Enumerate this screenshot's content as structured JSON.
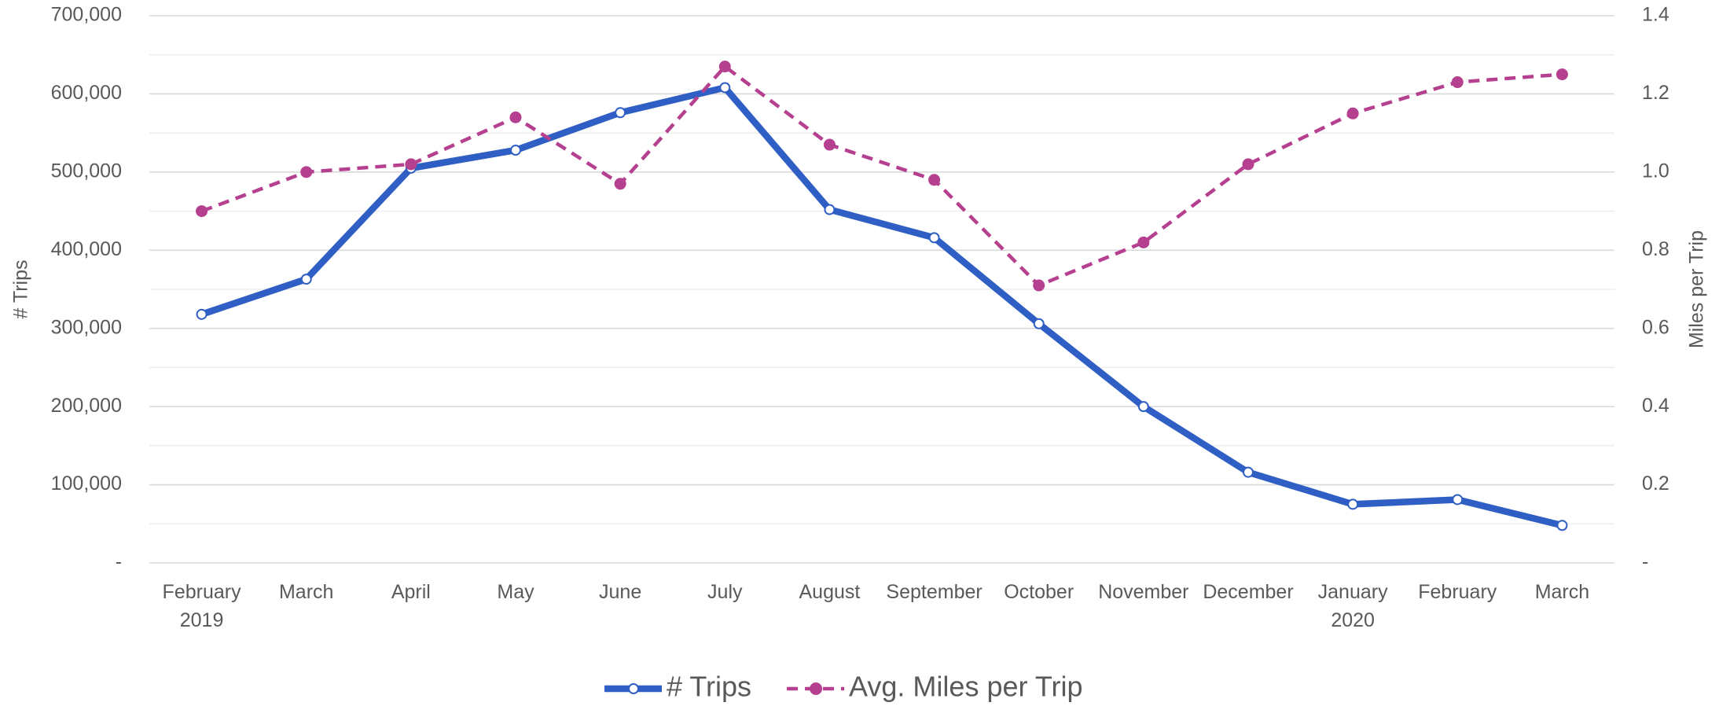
{
  "chart_data": {
    "type": "line",
    "categories": [
      "February\n2019",
      "March",
      "April",
      "May",
      "June",
      "July",
      "August",
      "September",
      "October",
      "November",
      "December",
      "January\n2020",
      "February",
      "March"
    ],
    "series": [
      {
        "name": "# Trips",
        "color": "#2f5fc4",
        "axis": "y",
        "values": [
          318000,
          363000,
          505000,
          528000,
          576000,
          608000,
          452000,
          416000,
          306000,
          200000,
          116000,
          75000,
          81000,
          48000
        ]
      },
      {
        "name": "Avg. Miles per Trip",
        "color": "#b5408f",
        "axis": "y2",
        "dashed": true,
        "values": [
          0.9,
          1.0,
          1.02,
          1.14,
          0.97,
          1.27,
          1.07,
          0.98,
          0.71,
          0.82,
          1.02,
          1.15,
          1.23,
          1.25
        ]
      }
    ],
    "ylabel": "# Trips",
    "y2label": "Miles per Trip",
    "ylim": [
      0,
      700000
    ],
    "yticks": [
      {
        "value": 0,
        "label": "-"
      },
      {
        "value": 100000,
        "label": "100,000"
      },
      {
        "value": 200000,
        "label": "200,000"
      },
      {
        "value": 300000,
        "label": "300,000"
      },
      {
        "value": 400000,
        "label": "400,000"
      },
      {
        "value": 500000,
        "label": "500,000"
      },
      {
        "value": 600000,
        "label": "600,000"
      },
      {
        "value": 700000,
        "label": "700,000"
      }
    ],
    "y2lim": [
      0,
      1.4
    ],
    "y2ticks": [
      {
        "value": 0,
        "label": "-"
      },
      0.2,
      0.4,
      0.6,
      0.8,
      {
        "value": 1.0,
        "label": "1.0"
      },
      1.2,
      1.4
    ],
    "grid": true,
    "legend": "bottom"
  }
}
